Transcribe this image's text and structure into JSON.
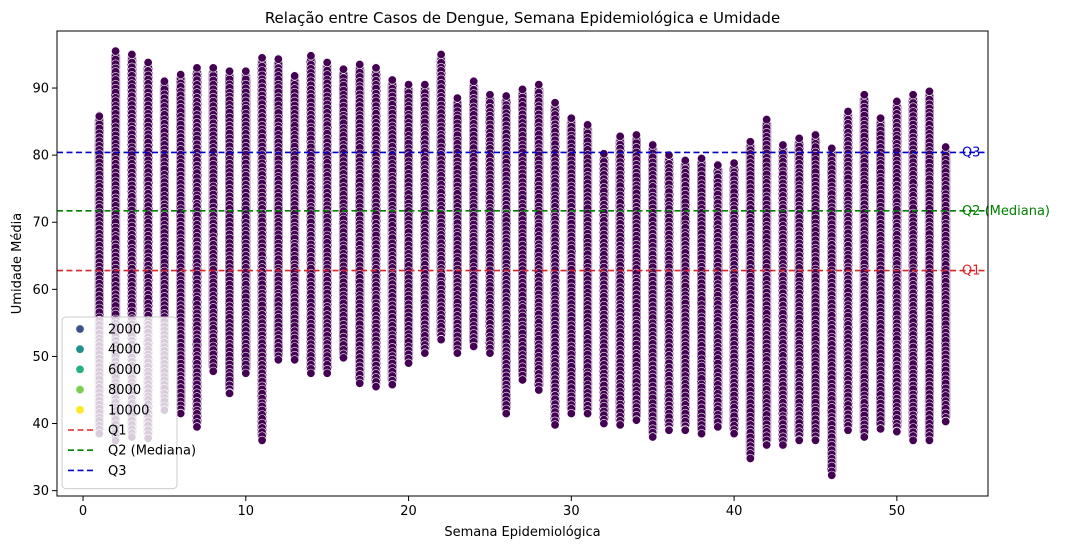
{
  "chart_data": {
    "type": "scatter",
    "title": "Relação entre Casos de Dengue, Semana Epidemiológica e Umidade",
    "xlabel": "Semana Epidemiológica",
    "ylabel": "Umidade Média",
    "xlim": [
      -1.6,
      55.6
    ],
    "ylim": [
      29.2,
      98.5
    ],
    "xticks": [
      0,
      10,
      20,
      30,
      40,
      50
    ],
    "yticks": [
      30,
      40,
      50,
      60,
      70,
      80,
      90
    ],
    "grid": false,
    "legend_position": "lower-left",
    "hue": {
      "palette": "viridis",
      "dominant_color": "#440154",
      "legend_entries": [
        {
          "label": "2000",
          "color": "#3b528b"
        },
        {
          "label": "4000",
          "color": "#21918c"
        },
        {
          "label": "6000",
          "color": "#2ab07f"
        },
        {
          "label": "8000",
          "color": "#7ad151"
        },
        {
          "label": "10000",
          "color": "#fde725"
        }
      ]
    },
    "hlines": [
      {
        "label": "Q1",
        "value": 62.8,
        "color": "#d62728",
        "annotation": "Q1"
      },
      {
        "label": "Q2 (Mediana)",
        "value": 71.7,
        "color": "#008000",
        "annotation": "Q2 (Mediana)"
      },
      {
        "label": "Q3",
        "value": 80.4,
        "color": "#0000cc",
        "annotation": "Q3"
      }
    ],
    "weeks": {
      "start": 1,
      "end": 53,
      "y_min": [
        38.5,
        37.5,
        38,
        37.8,
        42,
        41.5,
        39.5,
        47.8,
        44.5,
        47.5,
        37.5,
        49.5,
        49.5,
        47.5,
        47.5,
        49.8,
        46,
        45.5,
        45.8,
        49,
        50.5,
        52.5,
        50.5,
        51.5,
        50.5,
        41.5,
        46.5,
        45,
        39.8,
        41.5,
        41.5,
        40,
        39.8,
        40.5,
        38,
        39,
        39,
        38.5,
        39.5,
        38.5,
        34.8,
        36.8,
        36.8,
        37.5,
        37.5,
        32.3,
        39,
        38,
        39.2,
        38.8,
        37.5,
        37.5,
        40.3
      ],
      "y_max": [
        85.8,
        95.5,
        95,
        93.8,
        91,
        92,
        93,
        93,
        92.5,
        92.5,
        94.5,
        94.3,
        91.8,
        94.8,
        93.8,
        92.8,
        93.5,
        93,
        91.2,
        90.5,
        90.5,
        95,
        88.5,
        91,
        89,
        88.8,
        89.8,
        90.5,
        87.8,
        85.5,
        84.5,
        80.2,
        82.8,
        83,
        81.5,
        80,
        79.2,
        79.5,
        78.5,
        78.8,
        82,
        85.3,
        81.5,
        82.5,
        83,
        81,
        86.5,
        89,
        85.5,
        88,
        89,
        89.5,
        81.2
      ]
    }
  }
}
